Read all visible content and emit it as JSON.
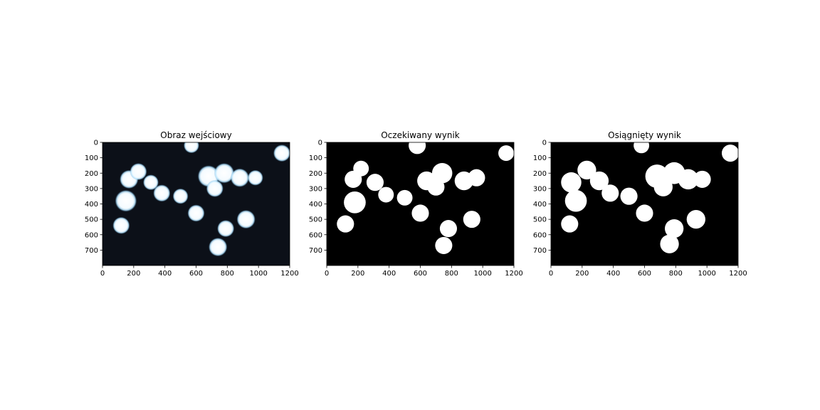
{
  "figure": {
    "background": "#ffffff"
  },
  "chart_data": [
    {
      "type": "image",
      "title": "Obraz wejściowy",
      "xlim": [
        0,
        1200
      ],
      "ylim": [
        800,
        0
      ],
      "xticks": [
        0,
        200,
        400,
        600,
        800,
        1000,
        1200
      ],
      "yticks": [
        0,
        100,
        200,
        300,
        400,
        500,
        600,
        700
      ],
      "background": "#0c1018",
      "blobs": [
        {
          "x": 570,
          "y": 20,
          "r": 50
        },
        {
          "x": 1150,
          "y": 70,
          "r": 55
        },
        {
          "x": 170,
          "y": 240,
          "r": 60
        },
        {
          "x": 230,
          "y": 190,
          "r": 55
        },
        {
          "x": 310,
          "y": 260,
          "r": 50
        },
        {
          "x": 150,
          "y": 380,
          "r": 70
        },
        {
          "x": 380,
          "y": 330,
          "r": 55
        },
        {
          "x": 500,
          "y": 350,
          "r": 50
        },
        {
          "x": 680,
          "y": 220,
          "r": 70
        },
        {
          "x": 780,
          "y": 200,
          "r": 65
        },
        {
          "x": 720,
          "y": 300,
          "r": 55
        },
        {
          "x": 880,
          "y": 230,
          "r": 60
        },
        {
          "x": 980,
          "y": 230,
          "r": 50
        },
        {
          "x": 600,
          "y": 460,
          "r": 55
        },
        {
          "x": 120,
          "y": 540,
          "r": 55
        },
        {
          "x": 920,
          "y": 500,
          "r": 60
        },
        {
          "x": 790,
          "y": 560,
          "r": 55
        },
        {
          "x": 740,
          "y": 680,
          "r": 60
        }
      ]
    },
    {
      "type": "image",
      "title": "Oczekiwany wynik",
      "xlim": [
        0,
        1200
      ],
      "ylim": [
        800,
        0
      ],
      "xticks": [
        0,
        200,
        400,
        600,
        800,
        1000,
        1200
      ],
      "yticks": [
        0,
        100,
        200,
        300,
        400,
        500,
        600,
        700
      ],
      "background": "#000000",
      "blobs": [
        {
          "x": 580,
          "y": 20,
          "r": 55
        },
        {
          "x": 1150,
          "y": 70,
          "r": 50
        },
        {
          "x": 220,
          "y": 170,
          "r": 50
        },
        {
          "x": 170,
          "y": 240,
          "r": 55
        },
        {
          "x": 310,
          "y": 260,
          "r": 55
        },
        {
          "x": 180,
          "y": 390,
          "r": 70
        },
        {
          "x": 380,
          "y": 340,
          "r": 50
        },
        {
          "x": 500,
          "y": 360,
          "r": 50
        },
        {
          "x": 640,
          "y": 250,
          "r": 60
        },
        {
          "x": 740,
          "y": 200,
          "r": 65
        },
        {
          "x": 700,
          "y": 290,
          "r": 55
        },
        {
          "x": 880,
          "y": 250,
          "r": 60
        },
        {
          "x": 960,
          "y": 230,
          "r": 55
        },
        {
          "x": 600,
          "y": 460,
          "r": 55
        },
        {
          "x": 120,
          "y": 530,
          "r": 55
        },
        {
          "x": 930,
          "y": 500,
          "r": 55
        },
        {
          "x": 780,
          "y": 560,
          "r": 55
        },
        {
          "x": 750,
          "y": 670,
          "r": 55
        }
      ]
    },
    {
      "type": "image",
      "title": "Osiągnięty wynik",
      "xlim": [
        0,
        1200
      ],
      "ylim": [
        800,
        0
      ],
      "xticks": [
        0,
        200,
        400,
        600,
        800,
        1000,
        1200
      ],
      "yticks": [
        0,
        100,
        200,
        300,
        400,
        500,
        600,
        700
      ],
      "background": "#000000",
      "blobs": [
        {
          "x": 580,
          "y": 20,
          "r": 50
        },
        {
          "x": 1150,
          "y": 70,
          "r": 55
        },
        {
          "x": 230,
          "y": 180,
          "r": 60
        },
        {
          "x": 130,
          "y": 260,
          "r": 65
        },
        {
          "x": 310,
          "y": 250,
          "r": 60
        },
        {
          "x": 160,
          "y": 380,
          "r": 70
        },
        {
          "x": 380,
          "y": 330,
          "r": 55
        },
        {
          "x": 500,
          "y": 350,
          "r": 55
        },
        {
          "x": 680,
          "y": 220,
          "r": 75
        },
        {
          "x": 790,
          "y": 200,
          "r": 70
        },
        {
          "x": 720,
          "y": 290,
          "r": 60
        },
        {
          "x": 880,
          "y": 240,
          "r": 65
        },
        {
          "x": 970,
          "y": 240,
          "r": 55
        },
        {
          "x": 600,
          "y": 460,
          "r": 55
        },
        {
          "x": 120,
          "y": 530,
          "r": 55
        },
        {
          "x": 930,
          "y": 500,
          "r": 60
        },
        {
          "x": 790,
          "y": 560,
          "r": 60
        },
        {
          "x": 760,
          "y": 660,
          "r": 60
        }
      ]
    }
  ]
}
